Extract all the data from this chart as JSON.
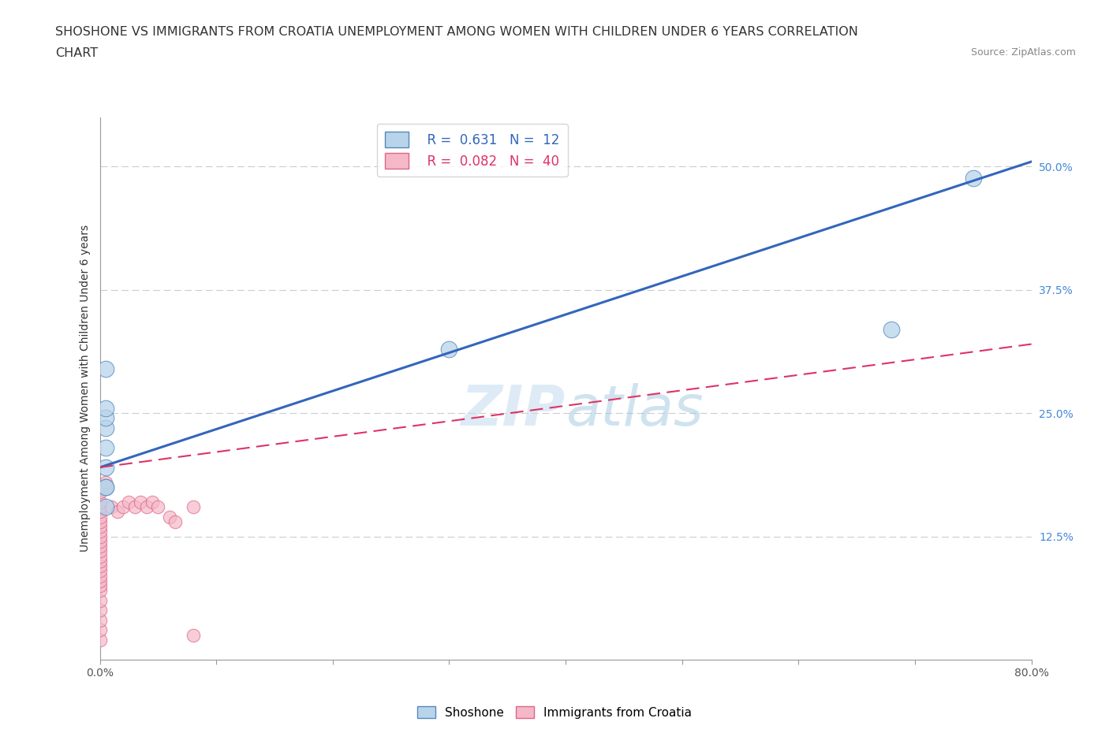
{
  "title_line1": "SHOSHONE VS IMMIGRANTS FROM CROATIA UNEMPLOYMENT AMONG WOMEN WITH CHILDREN UNDER 6 YEARS CORRELATION",
  "title_line2": "CHART",
  "source": "Source: ZipAtlas.com",
  "ylabel": "Unemployment Among Women with Children Under 6 years",
  "xlim": [
    0.0,
    0.8
  ],
  "ylim": [
    0.0,
    0.55
  ],
  "xticks": [
    0.0,
    0.1,
    0.2,
    0.3,
    0.4,
    0.5,
    0.6,
    0.7,
    0.8
  ],
  "yticks_right": [
    0.0,
    0.125,
    0.25,
    0.375,
    0.5
  ],
  "ytick_right_labels": [
    "",
    "12.5%",
    "25.0%",
    "37.5%",
    "50.0%"
  ],
  "shoshone_R": 0.631,
  "shoshone_N": 12,
  "croatia_R": 0.082,
  "croatia_N": 40,
  "shoshone_color": "#b8d4ea",
  "shoshone_edge": "#5588bb",
  "shoshone_line_color": "#3366bb",
  "croatia_color": "#f5b8c8",
  "croatia_edge": "#dd6688",
  "croatia_line_color": "#dd3366",
  "watermark_color": "#cce5f5",
  "background_color": "#ffffff",
  "shoshone_line_x0": 0.0,
  "shoshone_line_y0": 0.195,
  "shoshone_line_x1": 0.8,
  "shoshone_line_y1": 0.505,
  "croatia_line_x0": 0.0,
  "croatia_line_y0": 0.195,
  "croatia_line_x1": 0.8,
  "croatia_line_y1": 0.32,
  "shoshone_x": [
    0.005,
    0.005,
    0.005,
    0.005,
    0.005,
    0.005,
    0.005,
    0.005,
    0.005,
    0.68,
    0.3,
    0.75
  ],
  "shoshone_y": [
    0.155,
    0.175,
    0.195,
    0.215,
    0.235,
    0.245,
    0.255,
    0.295,
    0.175,
    0.335,
    0.315,
    0.488
  ],
  "croatia_x": [
    0.0,
    0.0,
    0.0,
    0.0,
    0.0,
    0.0,
    0.0,
    0.0,
    0.0,
    0.0,
    0.0,
    0.0,
    0.0,
    0.0,
    0.0,
    0.0,
    0.0,
    0.0,
    0.0,
    0.0,
    0.0,
    0.0,
    0.0,
    0.0,
    0.0,
    0.005,
    0.005,
    0.01,
    0.015,
    0.02,
    0.025,
    0.03,
    0.035,
    0.04,
    0.045,
    0.05,
    0.06,
    0.065,
    0.08,
    0.08
  ],
  "croatia_y": [
    0.02,
    0.03,
    0.04,
    0.05,
    0.06,
    0.07,
    0.075,
    0.08,
    0.085,
    0.09,
    0.095,
    0.1,
    0.105,
    0.11,
    0.115,
    0.12,
    0.125,
    0.13,
    0.135,
    0.14,
    0.145,
    0.15,
    0.155,
    0.16,
    0.17,
    0.175,
    0.18,
    0.155,
    0.15,
    0.155,
    0.16,
    0.155,
    0.16,
    0.155,
    0.16,
    0.155,
    0.145,
    0.14,
    0.155,
    0.025
  ]
}
